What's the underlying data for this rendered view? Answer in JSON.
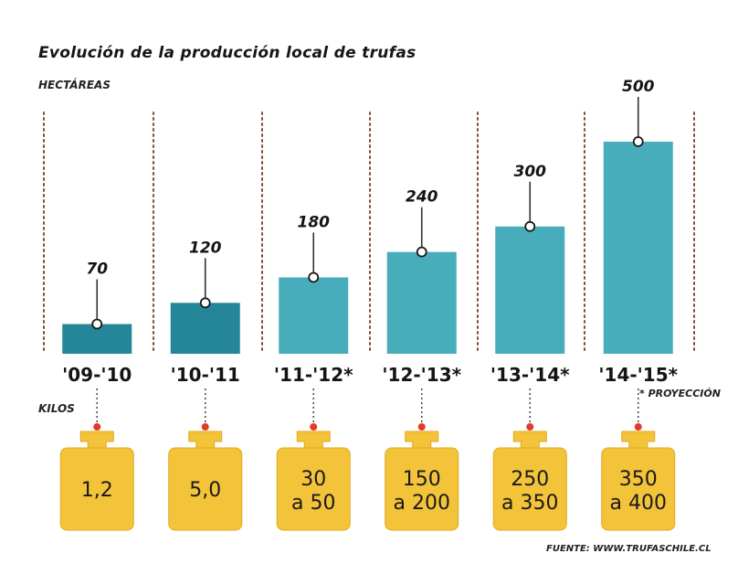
{
  "title": "Evolución de la producción local de trufas",
  "footnote": "* PROYECCIÓN",
  "source": "FUENTE: WWW.TRUFASCHILE.CL",
  "kilos_label": "KILOS",
  "colors": {
    "bar_dark": "#25869a",
    "bar_light": "#48adbb",
    "weight": "#f3c33a",
    "weight_border": "#e0a91f",
    "dot": "#e43a2a",
    "divider": "#8a4b3a",
    "leader": "#333333"
  },
  "chart_data": {
    "type": "bar",
    "title": "Evolución de la producción local de trufas",
    "ylabel": "HECTÁREAS",
    "xlabel": "",
    "categories": [
      "'09-'10",
      "'10-'11",
      "'11-'12*",
      "'12-'13*",
      "'13-'14*",
      "'14-'15*"
    ],
    "values": [
      70,
      120,
      180,
      240,
      300,
      500
    ],
    "ylim": [
      0,
      500
    ],
    "grid": false,
    "legend": "none",
    "secondary": {
      "label": "KILOS",
      "values": [
        [
          "1,2"
        ],
        [
          "5,0"
        ],
        [
          "30",
          "a 50"
        ],
        [
          "150",
          "a 200"
        ],
        [
          "250",
          "a 350"
        ],
        [
          "350",
          "a 400"
        ]
      ]
    }
  }
}
